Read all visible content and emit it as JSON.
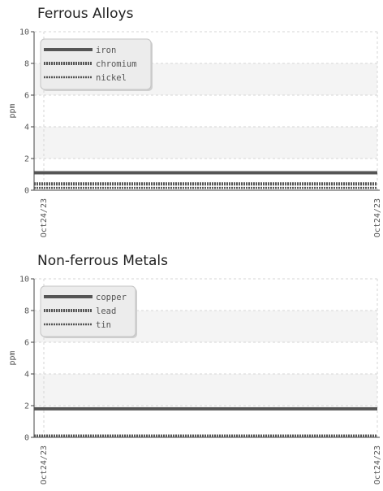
{
  "chart_data": [
    {
      "type": "line",
      "title": "Ferrous Alloys",
      "ylabel": "ppm",
      "ylim": [
        0,
        10
      ],
      "yticks": [
        "0",
        "2",
        "4",
        "6",
        "8",
        "10"
      ],
      "xtick_labels": [
        "Oct24/23",
        "Oct24/23"
      ],
      "grid": true,
      "legend_position": "top-left",
      "series": [
        {
          "name": "iron",
          "values": [
            1.1,
            1.1
          ],
          "color": "#555555",
          "style": "solid"
        },
        {
          "name": "chromium",
          "values": [
            0.4,
            0.4
          ],
          "color": "#555555",
          "style": "dotted"
        },
        {
          "name": "nickel",
          "values": [
            0.15,
            0.15
          ],
          "color": "#555555",
          "style": "dashed"
        }
      ]
    },
    {
      "type": "line",
      "title": "Non-ferrous Metals",
      "ylabel": "ppm",
      "ylim": [
        0,
        10
      ],
      "yticks": [
        "0",
        "2",
        "4",
        "6",
        "8",
        "10"
      ],
      "xtick_labels": [
        "Oct24/23",
        "Oct24/23"
      ],
      "grid": true,
      "legend_position": "top-left",
      "series": [
        {
          "name": "copper",
          "values": [
            1.8,
            1.8
          ],
          "color": "#555555",
          "style": "solid"
        },
        {
          "name": "lead",
          "values": [
            0.0,
            0.0
          ],
          "color": "#555555",
          "style": "dotted"
        },
        {
          "name": "tin",
          "values": [
            0.0,
            0.0
          ],
          "color": "#555555",
          "style": "dashed"
        }
      ]
    }
  ]
}
